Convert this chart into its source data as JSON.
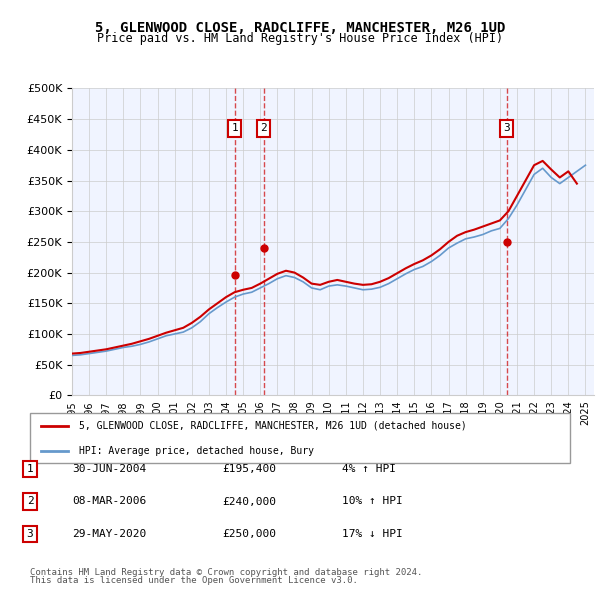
{
  "title": "5, GLENWOOD CLOSE, RADCLIFFE, MANCHESTER, M26 1UD",
  "subtitle": "Price paid vs. HM Land Registry's House Price Index (HPI)",
  "legend_line1": "5, GLENWOOD CLOSE, RADCLIFFE, MANCHESTER, M26 1UD (detached house)",
  "legend_line2": "HPI: Average price, detached house, Bury",
  "footer1": "Contains HM Land Registry data © Crown copyright and database right 2024.",
  "footer2": "This data is licensed under the Open Government Licence v3.0.",
  "sale_color": "#cc0000",
  "hpi_color": "#6699cc",
  "background_color": "#f0f4ff",
  "transaction_color": "#cc0000",
  "marker_box_color": "#cc0000",
  "ylim": [
    0,
    500000
  ],
  "yticks": [
    0,
    50000,
    100000,
    150000,
    200000,
    250000,
    300000,
    350000,
    400000,
    450000,
    500000
  ],
  "transactions": [
    {
      "date": "2004-06-30",
      "price": 195400,
      "label": "1",
      "x": 2004.5
    },
    {
      "date": "2006-03-08",
      "price": 240000,
      "label": "2",
      "x": 2006.2
    },
    {
      "date": "2020-05-29",
      "price": 250000,
      "label": "3",
      "x": 2020.4
    }
  ],
  "table_rows": [
    {
      "num": "1",
      "date": "30-JUN-2004",
      "price": "£195,400",
      "hpi": "4% ↑ HPI"
    },
    {
      "num": "2",
      "date": "08-MAR-2006",
      "price": "£240,000",
      "hpi": "10% ↑ HPI"
    },
    {
      "num": "3",
      "date": "29-MAY-2020",
      "price": "£250,000",
      "hpi": "17% ↓ HPI"
    }
  ],
  "hpi_data": {
    "years": [
      1995,
      1995.5,
      1996,
      1996.5,
      1997,
      1997.5,
      1998,
      1998.5,
      1999,
      1999.5,
      2000,
      2000.5,
      2001,
      2001.5,
      2002,
      2002.5,
      2003,
      2003.5,
      2004,
      2004.5,
      2005,
      2005.5,
      2006,
      2006.5,
      2007,
      2007.5,
      2008,
      2008.5,
      2009,
      2009.5,
      2010,
      2010.5,
      2011,
      2011.5,
      2012,
      2012.5,
      2013,
      2013.5,
      2014,
      2014.5,
      2015,
      2015.5,
      2016,
      2016.5,
      2017,
      2017.5,
      2018,
      2018.5,
      2019,
      2019.5,
      2020,
      2020.5,
      2021,
      2021.5,
      2022,
      2022.5,
      2023,
      2023.5,
      2024,
      2024.5,
      2025
    ],
    "values": [
      65000,
      66000,
      68000,
      70000,
      72000,
      75000,
      78000,
      80000,
      83000,
      87000,
      92000,
      97000,
      100000,
      103000,
      110000,
      120000,
      133000,
      143000,
      152000,
      160000,
      165000,
      168000,
      175000,
      182000,
      190000,
      195000,
      192000,
      185000,
      175000,
      172000,
      178000,
      180000,
      178000,
      175000,
      172000,
      173000,
      176000,
      182000,
      190000,
      198000,
      205000,
      210000,
      218000,
      228000,
      240000,
      248000,
      255000,
      258000,
      262000,
      268000,
      272000,
      288000,
      310000,
      335000,
      360000,
      370000,
      355000,
      345000,
      355000,
      365000,
      375000
    ]
  },
  "sale_hpi_data": {
    "years": [
      1995,
      1995.5,
      1996,
      1996.5,
      1997,
      1997.5,
      1998,
      1998.5,
      1999,
      1999.5,
      2000,
      2000.5,
      2001,
      2001.5,
      2002,
      2002.5,
      2003,
      2003.5,
      2004,
      2004.5,
      2005,
      2005.5,
      2006,
      2006.5,
      2007,
      2007.5,
      2008,
      2008.5,
      2009,
      2009.5,
      2010,
      2010.5,
      2011,
      2011.5,
      2012,
      2012.5,
      2013,
      2013.5,
      2014,
      2014.5,
      2015,
      2015.5,
      2016,
      2016.5,
      2017,
      2017.5,
      2018,
      2018.5,
      2019,
      2019.5,
      2020,
      2020.5,
      2021,
      2021.5,
      2022,
      2022.5,
      2023,
      2023.5,
      2024,
      2024.5
    ],
    "values": [
      68000,
      69000,
      71000,
      73000,
      75000,
      78000,
      81000,
      84000,
      88000,
      92000,
      97000,
      102000,
      106000,
      110000,
      118000,
      128000,
      140000,
      150000,
      160000,
      168000,
      172000,
      175000,
      182000,
      190000,
      198000,
      203000,
      200000,
      192000,
      182000,
      180000,
      185000,
      188000,
      185000,
      182000,
      180000,
      181000,
      185000,
      191000,
      199000,
      207000,
      214000,
      220000,
      228000,
      238000,
      250000,
      260000,
      266000,
      270000,
      275000,
      280000,
      285000,
      300000,
      325000,
      350000,
      375000,
      382000,
      368000,
      355000,
      365000,
      345000
    ]
  },
  "xmin": 1995,
  "xmax": 2025.5
}
